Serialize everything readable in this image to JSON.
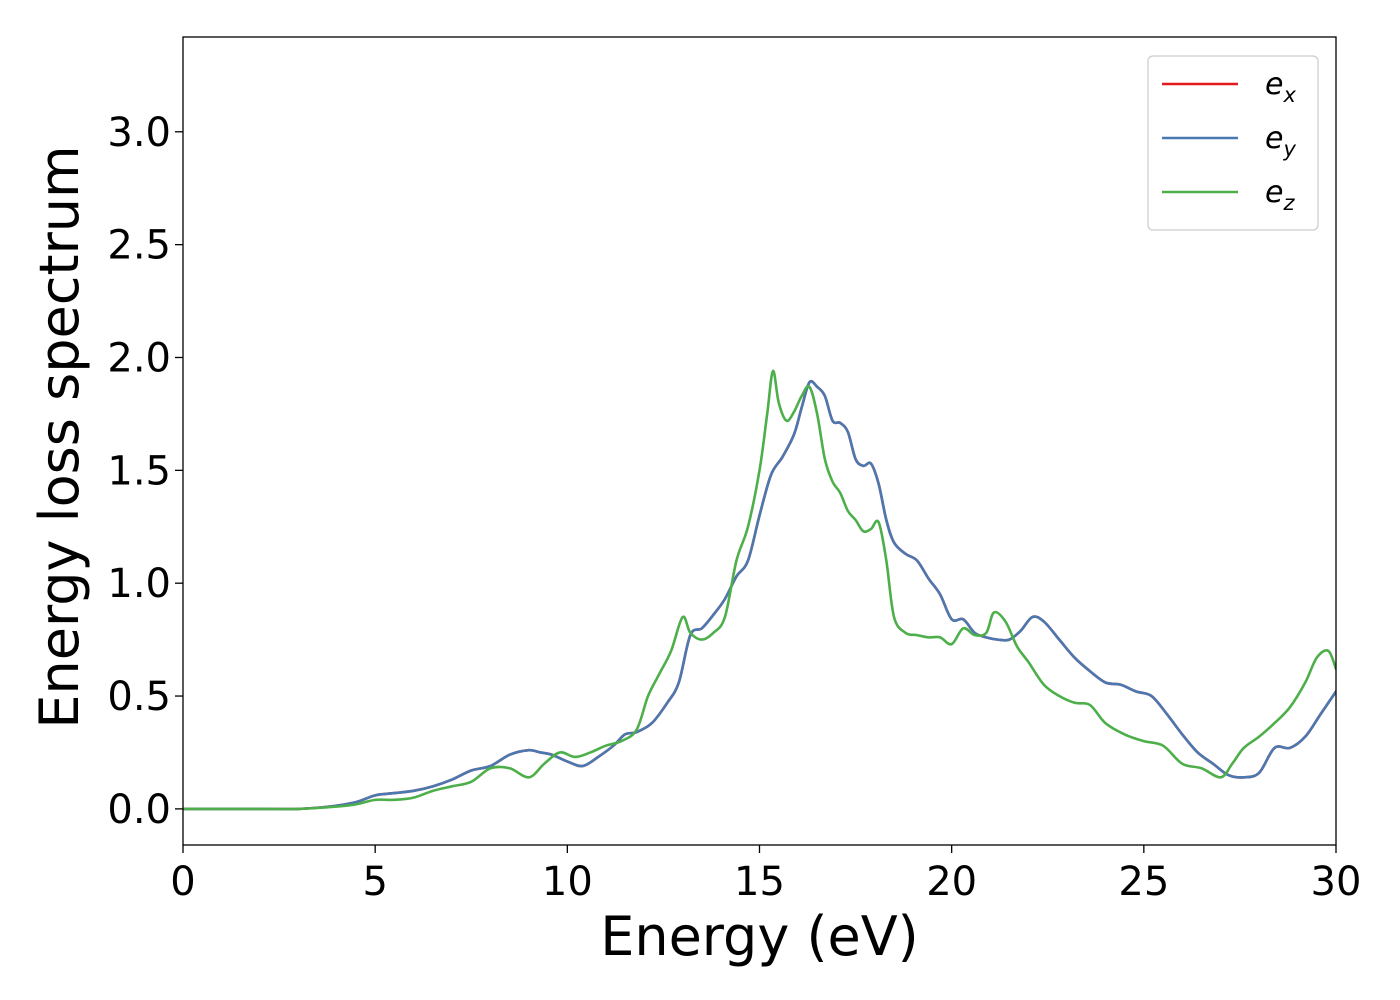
{
  "chart_data": {
    "type": "line",
    "title": "",
    "xlabel": "Energy (eV)",
    "ylabel": "Energy loss spectrum",
    "xlim": [
      0,
      30
    ],
    "ylim": [
      -0.16,
      3.42
    ],
    "xticks": [
      0,
      5,
      10,
      15,
      20,
      25,
      30
    ],
    "yticks": [
      0.0,
      0.5,
      1.0,
      1.5,
      2.0,
      2.5,
      3.0
    ],
    "xtick_labels": [
      "0",
      "5",
      "10",
      "15",
      "20",
      "25",
      "30"
    ],
    "ytick_labels": [
      "0.0",
      "0.5",
      "1.0",
      "1.5",
      "2.0",
      "2.5",
      "3.0"
    ],
    "grid": false,
    "legend_position": "top-right",
    "series": [
      {
        "name": "e_x",
        "legend_base": "e",
        "legend_sub": "x",
        "color": "#e41a1c",
        "x": [
          0,
          2,
          3,
          3.8,
          4.5,
          5,
          5.5,
          6,
          6.5,
          7,
          7.5,
          8,
          8.5,
          9,
          9.3,
          9.6,
          10,
          10.4,
          10.8,
          11.2,
          11.5,
          11.8,
          12.2,
          12.6,
          12.9,
          13.2,
          13.5,
          13.8,
          14.1,
          14.4,
          14.7,
          15,
          15.3,
          15.6,
          15.9,
          16.1,
          16.3,
          16.5,
          16.7,
          16.9,
          17.1,
          17.3,
          17.5,
          17.7,
          17.9,
          18.1,
          18.3,
          18.5,
          18.8,
          19.1,
          19.4,
          19.7,
          20,
          20.3,
          20.6,
          20.9,
          21.2,
          21.5,
          21.8,
          22.1,
          22.4,
          22.8,
          23.2,
          23.6,
          24,
          24.4,
          24.8,
          25.2,
          25.6,
          26,
          26.4,
          26.8,
          27.2,
          27.6,
          28,
          28.4,
          28.8,
          29.2,
          29.6,
          30
        ],
        "y": [
          0.0,
          0.0,
          0.0,
          0.01,
          0.03,
          0.06,
          0.07,
          0.08,
          0.1,
          0.13,
          0.17,
          0.19,
          0.24,
          0.26,
          0.25,
          0.24,
          0.21,
          0.19,
          0.23,
          0.28,
          0.33,
          0.34,
          0.38,
          0.47,
          0.56,
          0.77,
          0.8,
          0.86,
          0.93,
          1.03,
          1.1,
          1.3,
          1.48,
          1.56,
          1.66,
          1.78,
          1.89,
          1.87,
          1.83,
          1.72,
          1.71,
          1.67,
          1.55,
          1.52,
          1.53,
          1.44,
          1.28,
          1.18,
          1.13,
          1.1,
          1.02,
          0.95,
          0.84,
          0.84,
          0.78,
          0.76,
          0.75,
          0.75,
          0.79,
          0.85,
          0.83,
          0.75,
          0.67,
          0.61,
          0.56,
          0.55,
          0.52,
          0.5,
          0.42,
          0.33,
          0.25,
          0.2,
          0.15,
          0.14,
          0.16,
          0.27,
          0.27,
          0.32,
          0.42,
          0.52
        ]
      },
      {
        "name": "e_y",
        "legend_base": "e",
        "legend_sub": "y",
        "color": "#4a78b0",
        "x": [
          0,
          2,
          3,
          3.8,
          4.5,
          5,
          5.5,
          6,
          6.5,
          7,
          7.5,
          8,
          8.5,
          9,
          9.3,
          9.6,
          10,
          10.4,
          10.8,
          11.2,
          11.5,
          11.8,
          12.2,
          12.6,
          12.9,
          13.2,
          13.5,
          13.8,
          14.1,
          14.4,
          14.7,
          15,
          15.3,
          15.6,
          15.9,
          16.1,
          16.3,
          16.5,
          16.7,
          16.9,
          17.1,
          17.3,
          17.5,
          17.7,
          17.9,
          18.1,
          18.3,
          18.5,
          18.8,
          19.1,
          19.4,
          19.7,
          20,
          20.3,
          20.6,
          20.9,
          21.2,
          21.5,
          21.8,
          22.1,
          22.4,
          22.8,
          23.2,
          23.6,
          24,
          24.4,
          24.8,
          25.2,
          25.6,
          26,
          26.4,
          26.8,
          27.2,
          27.6,
          28,
          28.4,
          28.8,
          29.2,
          29.6,
          30
        ],
        "y": [
          0.0,
          0.0,
          0.0,
          0.01,
          0.03,
          0.06,
          0.07,
          0.08,
          0.1,
          0.13,
          0.17,
          0.19,
          0.24,
          0.26,
          0.25,
          0.24,
          0.21,
          0.19,
          0.23,
          0.28,
          0.33,
          0.34,
          0.38,
          0.47,
          0.56,
          0.77,
          0.8,
          0.86,
          0.93,
          1.03,
          1.1,
          1.3,
          1.48,
          1.56,
          1.66,
          1.78,
          1.89,
          1.87,
          1.83,
          1.72,
          1.71,
          1.67,
          1.55,
          1.52,
          1.53,
          1.44,
          1.28,
          1.18,
          1.13,
          1.1,
          1.02,
          0.95,
          0.84,
          0.84,
          0.78,
          0.76,
          0.75,
          0.75,
          0.79,
          0.85,
          0.83,
          0.75,
          0.67,
          0.61,
          0.56,
          0.55,
          0.52,
          0.5,
          0.42,
          0.33,
          0.25,
          0.2,
          0.15,
          0.14,
          0.16,
          0.27,
          0.27,
          0.32,
          0.42,
          0.52
        ]
      },
      {
        "name": "e_z",
        "legend_base": "e",
        "legend_sub": "z",
        "color": "#4daf4a",
        "x": [
          0,
          2,
          3,
          4,
          4.5,
          5,
          5.5,
          6,
          6.5,
          7,
          7.5,
          8,
          8.5,
          9,
          9.4,
          9.8,
          10.2,
          10.6,
          11,
          11.4,
          11.8,
          12.1,
          12.4,
          12.7,
          13,
          13.2,
          13.5,
          13.8,
          14.1,
          14.4,
          14.7,
          15,
          15.2,
          15.35,
          15.5,
          15.7,
          15.9,
          16.1,
          16.3,
          16.5,
          16.7,
          16.9,
          17.1,
          17.3,
          17.5,
          17.7,
          17.9,
          18.1,
          18.3,
          18.5,
          18.8,
          19.1,
          19.4,
          19.7,
          20,
          20.3,
          20.6,
          20.9,
          21.1,
          21.4,
          21.7,
          22,
          22.4,
          22.8,
          23.2,
          23.6,
          24,
          24.5,
          25,
          25.5,
          26,
          26.5,
          27,
          27.3,
          27.6,
          28,
          28.4,
          28.8,
          29.2,
          29.5,
          29.8,
          30
        ],
        "y": [
          0.0,
          0.0,
          0.0,
          0.01,
          0.02,
          0.04,
          0.04,
          0.05,
          0.08,
          0.1,
          0.12,
          0.18,
          0.18,
          0.14,
          0.2,
          0.25,
          0.23,
          0.25,
          0.28,
          0.3,
          0.35,
          0.5,
          0.6,
          0.7,
          0.85,
          0.78,
          0.75,
          0.78,
          0.85,
          1.1,
          1.25,
          1.5,
          1.75,
          1.94,
          1.8,
          1.72,
          1.76,
          1.83,
          1.87,
          1.75,
          1.55,
          1.45,
          1.4,
          1.32,
          1.28,
          1.23,
          1.24,
          1.27,
          1.1,
          0.85,
          0.78,
          0.77,
          0.76,
          0.76,
          0.73,
          0.8,
          0.77,
          0.78,
          0.87,
          0.83,
          0.72,
          0.65,
          0.55,
          0.5,
          0.47,
          0.46,
          0.38,
          0.33,
          0.3,
          0.28,
          0.2,
          0.18,
          0.14,
          0.2,
          0.27,
          0.32,
          0.38,
          0.45,
          0.56,
          0.67,
          0.7,
          0.62
        ]
      }
    ]
  }
}
